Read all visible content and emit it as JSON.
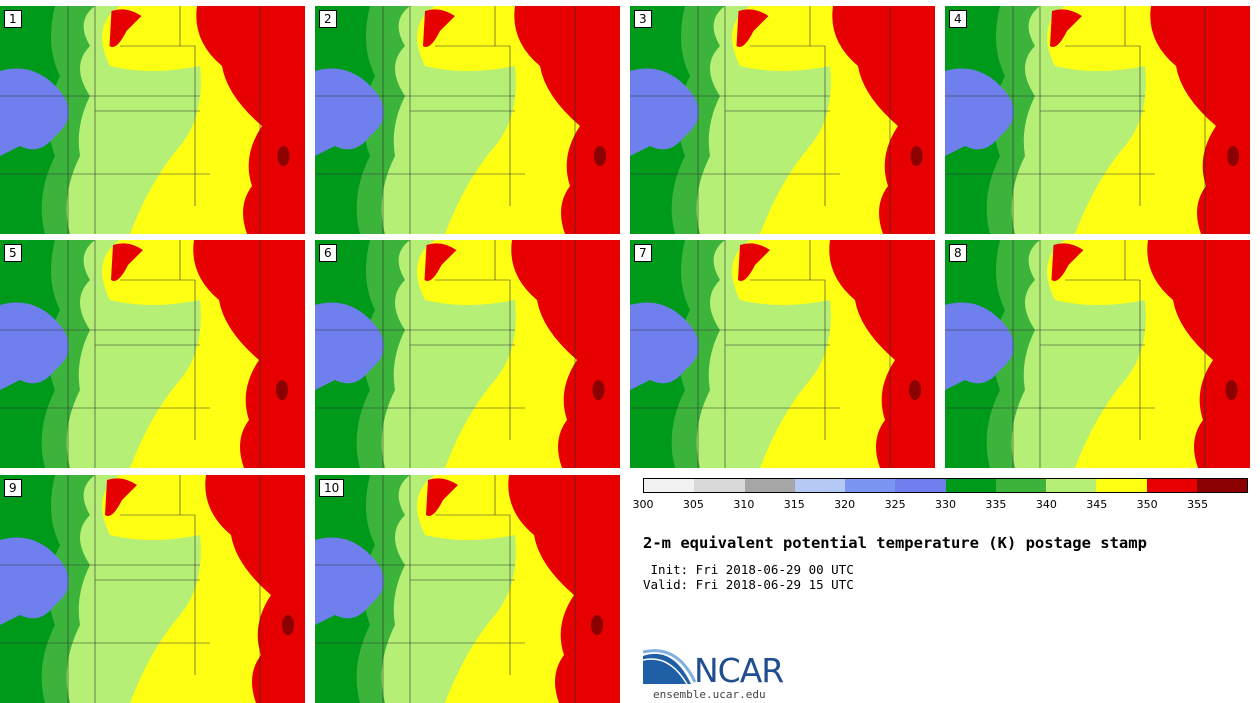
{
  "panels": [
    "1",
    "2",
    "3",
    "4",
    "5",
    "6",
    "7",
    "8",
    "9",
    "10"
  ],
  "colorbar": {
    "colors": [
      "#f2f2f2",
      "#d9d9d9",
      "#a6a6a6",
      "#b5c9f5",
      "#7b96f2",
      "#6f80ee",
      "#009a1a",
      "#3cb43c",
      "#b5ef75",
      "#ffff14",
      "#e60000",
      "#8b0000"
    ],
    "ticks": [
      "300",
      "305",
      "310",
      "315",
      "320",
      "325",
      "330",
      "335",
      "340",
      "345",
      "350",
      "355"
    ]
  },
  "title": "2-m equivalent potential temperature (K) postage stamp",
  "init": " Init: Fri 2018-06-29 00 UTC",
  "valid": "Valid: Fri 2018-06-29 15 UTC",
  "logo": {
    "text": "NCAR",
    "url": "ensemble.ucar.edu"
  }
}
